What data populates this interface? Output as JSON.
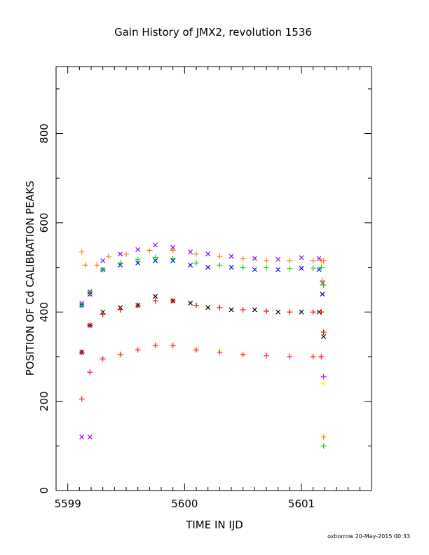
{
  "footer_text": "oxborrow 20-May-2015 00:33",
  "chart_data": {
    "type": "scatter",
    "title": "Gain History of JMX2, revolution 1536",
    "xlabel": "TIME IN IJD",
    "ylabel": "POSITION OF Cd CALIBRATION PEAKS",
    "xlim": [
      5598.9,
      5601.6
    ],
    "ylim": [
      0,
      950
    ],
    "xticks": [
      5599,
      5600,
      5601
    ],
    "xtick_labels": [
      "5599",
      "5600",
      "5601"
    ],
    "yticks": [
      0,
      200,
      400,
      600,
      800
    ],
    "ytick_labels": [
      "0",
      "200",
      "400",
      "600",
      "800"
    ],
    "grid": false,
    "legend": "none",
    "series": [
      {
        "color": "#9900ff",
        "marker": "x",
        "x": [
          5599.12,
          5599.19,
          5599.3,
          5599.45,
          5599.6,
          5599.75,
          5599.9,
          5600.05,
          5600.2,
          5600.4,
          5600.6,
          5600.8,
          5601.0,
          5601.15,
          5601.18
        ],
        "y": [
          420,
          445,
          515,
          530,
          540,
          550,
          545,
          535,
          530,
          525,
          520,
          518,
          522,
          520,
          465
        ]
      },
      {
        "color": "#0000ff",
        "marker": "x",
        "x": [
          5599.12,
          5599.19,
          5599.3,
          5599.45,
          5599.6,
          5599.75,
          5599.9,
          5600.05,
          5600.2,
          5600.4,
          5600.6,
          5600.8,
          5601.0,
          5601.15,
          5601.18
        ],
        "y": [
          415,
          440,
          495,
          505,
          510,
          515,
          515,
          505,
          500,
          500,
          495,
          495,
          498,
          495,
          440
        ]
      },
      {
        "color": "#ff8000",
        "marker": "+",
        "x": [
          5599.12,
          5599.15,
          5599.19,
          5599.25,
          5599.35,
          5599.5,
          5599.7,
          5599.9,
          5600.1,
          5600.3,
          5600.5,
          5600.7,
          5600.9,
          5601.1,
          5601.17,
          5601.18,
          5601.19
        ],
        "y": [
          535,
          505,
          440,
          505,
          525,
          530,
          538,
          538,
          530,
          525,
          520,
          515,
          515,
          515,
          515,
          470,
          515
        ]
      },
      {
        "color": "#00e000",
        "marker": "+",
        "x": [
          5599.12,
          5599.19,
          5599.3,
          5599.45,
          5599.6,
          5599.75,
          5599.9,
          5600.1,
          5600.3,
          5600.5,
          5600.7,
          5600.9,
          5601.1,
          5601.17,
          5601.19
        ],
        "y": [
          415,
          445,
          495,
          510,
          518,
          522,
          520,
          510,
          505,
          500,
          500,
          497,
          498,
          500,
          460
        ]
      },
      {
        "color": "#000000",
        "marker": "x",
        "x": [
          5599.12,
          5599.19,
          5599.3,
          5599.45,
          5599.6,
          5599.75,
          5599.9,
          5600.05,
          5600.2,
          5600.4,
          5600.6,
          5600.8,
          5601.0,
          5601.15,
          5601.19
        ],
        "y": [
          310,
          370,
          400,
          410,
          415,
          435,
          425,
          420,
          410,
          405,
          405,
          400,
          400,
          400,
          345
        ]
      },
      {
        "color": "#ff0000",
        "marker": "+",
        "x": [
          5599.12,
          5599.19,
          5599.3,
          5599.45,
          5599.6,
          5599.75,
          5599.9,
          5600.1,
          5600.3,
          5600.5,
          5600.7,
          5600.9,
          5601.1,
          5601.17,
          5601.19
        ],
        "y": [
          310,
          370,
          395,
          405,
          415,
          425,
          425,
          415,
          410,
          405,
          402,
          400,
          400,
          400,
          355
        ]
      },
      {
        "color": "#ffff00",
        "marker": "x",
        "x": [
          5599.12,
          5599.19,
          5599.3,
          5599.45,
          5599.6,
          5599.75,
          5599.9,
          5600.1,
          5600.3,
          5600.5,
          5600.7,
          5600.9,
          5601.1,
          5601.17,
          5601.19
        ],
        "y": [
          210,
          265,
          295,
          305,
          315,
          325,
          325,
          315,
          310,
          305,
          305,
          302,
          300,
          300,
          240
        ]
      },
      {
        "color": "#ff00ff",
        "marker": "+",
        "x": [
          5599.12,
          5599.19,
          5599.3,
          5599.45,
          5599.6,
          5599.75,
          5599.9,
          5600.1,
          5600.3,
          5600.5,
          5600.7,
          5600.9,
          5601.1,
          5601.17,
          5601.19
        ],
        "y": [
          205,
          265,
          295,
          305,
          315,
          325,
          325,
          315,
          310,
          305,
          302,
          300,
          300,
          300,
          255
        ]
      },
      {
        "color": "#9900ff",
        "marker": "x",
        "x": [
          5599.12,
          5599.19
        ],
        "y": [
          120,
          120
        ]
      },
      {
        "color": "#ff8000",
        "marker": "+",
        "x": [
          5601.19
        ],
        "y": [
          120
        ]
      },
      {
        "color": "#00e000",
        "marker": "+",
        "x": [
          5601.19
        ],
        "y": [
          100
        ]
      }
    ]
  }
}
